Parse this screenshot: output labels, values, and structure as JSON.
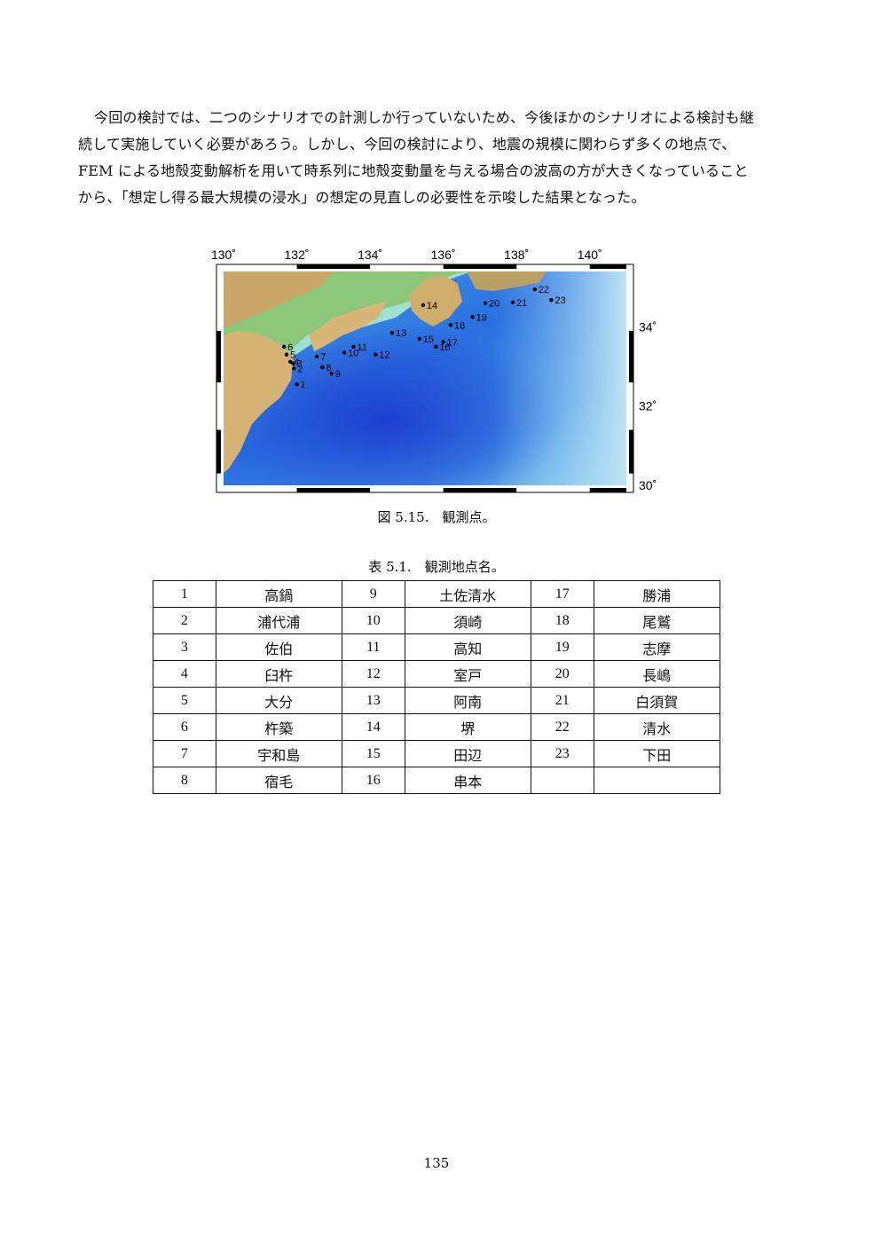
{
  "paragraph": [
    "今回の検討では、二つのシナリオでの計測しか行っていないため、今後ほかのシナリオによる検討も継",
    "続して実施していく必要があろう。しかし、今回の検討により、地震の規模に関わらず多くの地点で、",
    "FEM による地殻変動解析を用いて時系列に地殻変動量を与える場合の波高の方が大きくなっていること",
    "から、「想定し得る最大規模の浸水」の想定の見直しの必要性を示唆した結果となった。"
  ],
  "figure": {
    "caption": "図 5.15.　観測点。",
    "lon_ticks": [
      "130˚",
      "132˚",
      "134˚",
      "136˚",
      "138˚",
      "140˚"
    ],
    "lat_ticks": [
      "34˚",
      "32˚",
      "30˚"
    ],
    "points": [
      {
        "label": "1",
        "lon": 132.0,
        "lat": 32.55
      },
      {
        "label": "2",
        "lon": 131.92,
        "lat": 32.95
      },
      {
        "label": "3",
        "lon": 131.9,
        "lat": 33.08
      },
      {
        "label": "4",
        "lon": 131.82,
        "lat": 33.12
      },
      {
        "label": "5",
        "lon": 131.72,
        "lat": 33.3
      },
      {
        "label": "6",
        "lon": 131.65,
        "lat": 33.5
      },
      {
        "label": "7",
        "lon": 132.55,
        "lat": 33.25
      },
      {
        "label": "8",
        "lon": 132.7,
        "lat": 32.98
      },
      {
        "label": "9",
        "lon": 132.95,
        "lat": 32.82
      },
      {
        "label": "10",
        "lon": 133.3,
        "lat": 33.35
      },
      {
        "label": "11",
        "lon": 133.55,
        "lat": 33.5
      },
      {
        "label": "12",
        "lon": 134.15,
        "lat": 33.3
      },
      {
        "label": "13",
        "lon": 134.6,
        "lat": 33.85
      },
      {
        "label": "14",
        "lon": 135.45,
        "lat": 34.55
      },
      {
        "label": "15",
        "lon": 135.35,
        "lat": 33.7
      },
      {
        "label": "16",
        "lon": 135.8,
        "lat": 33.5
      },
      {
        "label": "17",
        "lon": 136.0,
        "lat": 33.62
      },
      {
        "label": "18",
        "lon": 136.2,
        "lat": 34.05
      },
      {
        "label": "19",
        "lon": 136.8,
        "lat": 34.25
      },
      {
        "label": "20",
        "lon": 137.15,
        "lat": 34.6
      },
      {
        "label": "21",
        "lon": 137.9,
        "lat": 34.62
      },
      {
        "label": "22",
        "lon": 138.5,
        "lat": 34.95
      },
      {
        "label": "23",
        "lon": 138.95,
        "lat": 34.68
      }
    ]
  },
  "table": {
    "caption": "表 5.1.　観測地点名。",
    "rows": [
      [
        {
          "n": "1",
          "name": "高鍋"
        },
        {
          "n": "9",
          "name": "土佐清水"
        },
        {
          "n": "17",
          "name": "勝浦"
        }
      ],
      [
        {
          "n": "2",
          "name": "浦代浦"
        },
        {
          "n": "10",
          "name": "須崎"
        },
        {
          "n": "18",
          "name": "尾鷲"
        }
      ],
      [
        {
          "n": "3",
          "name": "佐伯"
        },
        {
          "n": "11",
          "name": "高知"
        },
        {
          "n": "19",
          "name": "志摩"
        }
      ],
      [
        {
          "n": "4",
          "name": "臼杵"
        },
        {
          "n": "12",
          "name": "室戸"
        },
        {
          "n": "20",
          "name": "長嶋"
        }
      ],
      [
        {
          "n": "5",
          "name": "大分"
        },
        {
          "n": "13",
          "name": "阿南"
        },
        {
          "n": "21",
          "name": "白須賀"
        }
      ],
      [
        {
          "n": "6",
          "name": "杵築"
        },
        {
          "n": "14",
          "name": "堺"
        },
        {
          "n": "22",
          "name": "清水"
        }
      ],
      [
        {
          "n": "7",
          "name": "宇和島"
        },
        {
          "n": "15",
          "name": "田辺"
        },
        {
          "n": "23",
          "name": "下田"
        }
      ],
      [
        {
          "n": "8",
          "name": "宿毛"
        },
        {
          "n": "16",
          "name": "串本"
        },
        {
          "n": "",
          "name": ""
        }
      ]
    ]
  },
  "page_number": "135"
}
